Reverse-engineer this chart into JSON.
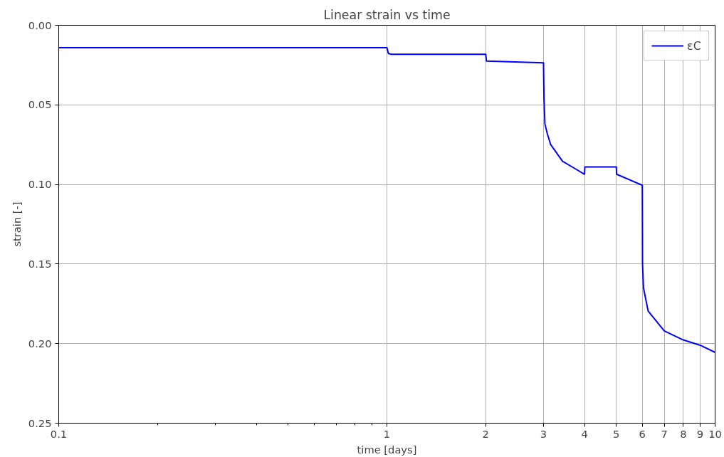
{
  "chart_data": {
    "type": "line",
    "title": "Linear strain vs time",
    "xlabel": "time [days]",
    "ylabel": "strain [-]",
    "log": "x",
    "xlim": [
      0.1,
      10
    ],
    "ylim": [
      0.25,
      0
    ],
    "xticks": [
      0.1,
      {
        "value": 0.2,
        "label": null
      },
      {
        "value": 0.3,
        "label": null
      },
      {
        "value": 0.4,
        "label": null
      },
      {
        "value": 0.5,
        "label": null
      },
      {
        "value": 0.6,
        "label": null
      },
      {
        "value": 0.7,
        "label": null
      },
      {
        "value": 0.8,
        "label": null
      },
      {
        "value": 0.9,
        "label": null
      },
      1,
      2,
      3,
      4,
      5,
      6,
      7,
      8,
      9,
      10
    ],
    "yticks": [
      {
        "value": 0,
        "label": "0.00"
      },
      0.05,
      {
        "value": 0.1,
        "label": "0.10"
      },
      0.15,
      {
        "value": 0.2,
        "label": "0.20"
      },
      0.25
    ],
    "grid": true,
    "legend": "top right",
    "line_style": "solid",
    "marker": "none",
    "series": [
      {
        "name": "εC",
        "color": "#0000ff",
        "x": [
          0.1,
          1.0,
          1.01,
          1.03,
          2.0,
          2.01,
          3.0,
          3.01,
          3.03,
          3.08,
          3.155,
          3.43,
          3.74,
          4.0,
          4.01,
          5.0,
          5.01,
          6.0,
          6.01,
          6.05,
          6.25,
          7,
          8,
          9,
          10
        ],
        "values": [
          0.0141,
          0.0141,
          0.0177,
          0.0182,
          0.0182,
          0.0225,
          0.0236,
          0.045,
          0.062,
          0.068,
          0.075,
          0.0855,
          0.09,
          0.0936,
          0.089,
          0.089,
          0.0936,
          0.1005,
          0.15,
          0.165,
          0.1795,
          0.192,
          0.1977,
          0.201,
          0.2055
        ]
      }
    ]
  }
}
